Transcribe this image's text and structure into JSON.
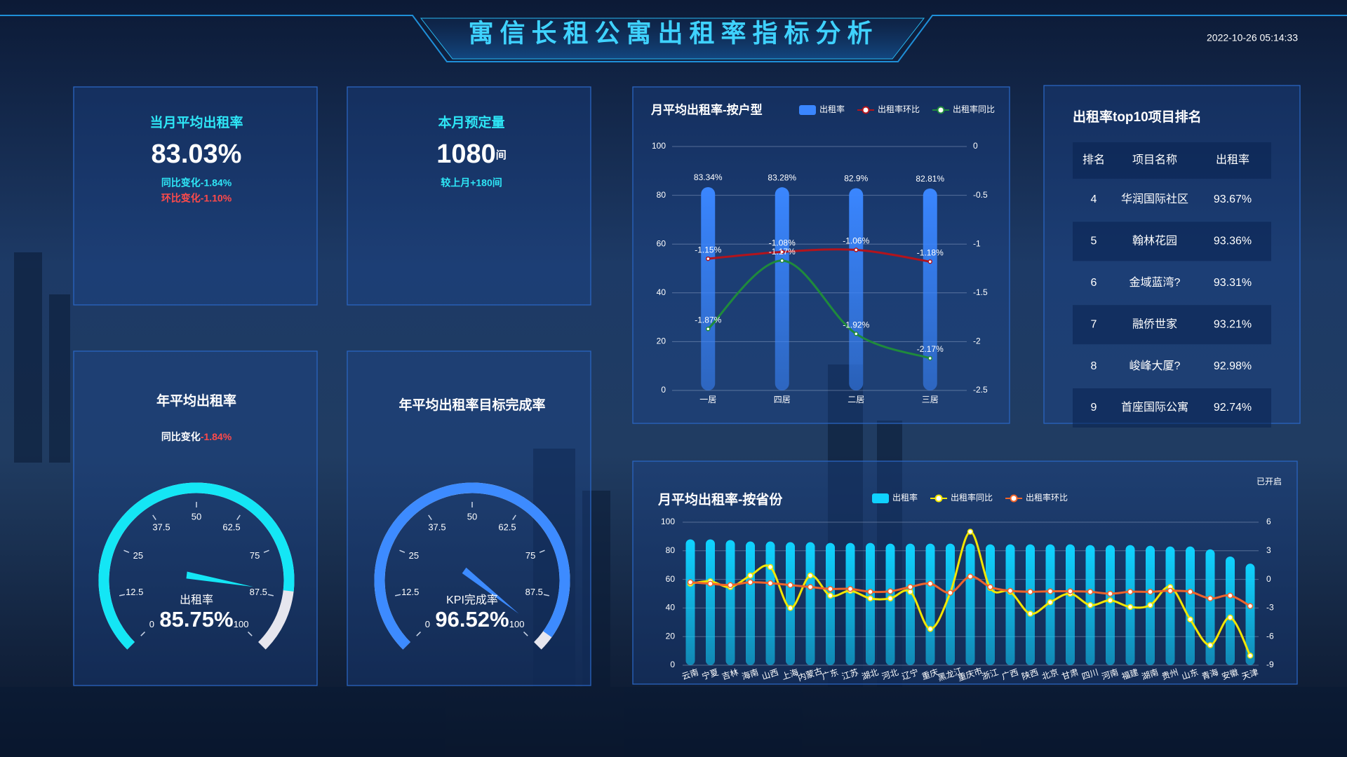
{
  "header": {
    "title": "寓信长租公寓出租率指标分析",
    "timestamp": "2022-10-26 05:14:33"
  },
  "cards": [
    {
      "title": "当月平均出租率",
      "value": "83.03%",
      "notes": [
        "同比变化-1.84%",
        "环比变化-1.10%"
      ],
      "note_colors": [
        "#2ee6f6",
        "#ff4a4a"
      ]
    },
    {
      "title": "本月预定量",
      "value": "1080",
      "unit": "间",
      "notes": [
        "较上月+180间"
      ],
      "note_colors": [
        "#2ee6f6"
      ]
    }
  ],
  "table": {
    "title": "出租率top10项目排名",
    "columns": [
      "排名",
      "项目名称",
      "出租率"
    ],
    "rows": [
      [
        4,
        "华润国际社区",
        "93.67%"
      ],
      [
        5,
        "翰林花园",
        "93.36%"
      ],
      [
        6,
        "金域蓝湾?",
        "93.31%"
      ],
      [
        7,
        "融侨世家",
        "93.21%"
      ],
      [
        8,
        "峻峰大厦?",
        "92.98%"
      ],
      [
        9,
        "首座国际公寓",
        "92.74%"
      ]
    ]
  },
  "chart_data": [
    {
      "type": "gauge",
      "title": "年平均出租率",
      "sub_label": "同比变化",
      "sub_value": "-1.84%",
      "name": "出租率",
      "value": 85.75,
      "value_label": "85.75%",
      "range": [
        0,
        100
      ],
      "ticks": [
        0,
        12.5,
        25,
        37.5,
        50,
        62.5,
        75,
        87.5,
        100
      ],
      "color": "#14e6f5"
    },
    {
      "type": "gauge",
      "title": "年平均出租率目标完成率",
      "name": "KPI完成率",
      "value": 96.52,
      "value_label": "96.52%",
      "range": [
        0,
        100
      ],
      "ticks": [
        0,
        12.5,
        25,
        37.5,
        50,
        62.5,
        75,
        87.5,
        100
      ],
      "color": "#3d8bff"
    },
    {
      "type": "bar-line",
      "title": "月平均出租率-按户型",
      "categories": [
        "一居",
        "四居",
        "二居",
        "三居"
      ],
      "series": [
        {
          "name": "出租率",
          "type": "bar",
          "color": "#3a86ff",
          "values": [
            83.34,
            83.28,
            82.9,
            82.81
          ],
          "value_labels": [
            "83.34%",
            "83.28%",
            "82.9%",
            "82.81%"
          ]
        },
        {
          "name": "出租率环比",
          "type": "line",
          "axis": "y2",
          "color": "#b3141c",
          "values": [
            -1.15,
            -1.08,
            -1.06,
            -1.18
          ],
          "value_labels": [
            "-1.15%",
            "-1.08%",
            "-1.06%",
            "-1.18%"
          ]
        },
        {
          "name": "出租率同比",
          "type": "line",
          "axis": "y2",
          "color": "#1f8a3c",
          "values": [
            -1.87,
            -1.17,
            -1.92,
            -2.17
          ],
          "value_labels": [
            "-1.87%",
            "-1.17%",
            "-1.92%",
            "-2.17%"
          ]
        }
      ],
      "ylim": [
        0,
        100
      ],
      "yticks": [
        0,
        20,
        40,
        60,
        80,
        100
      ],
      "y2lim": [
        -2.5,
        0
      ],
      "y2ticks": [
        0,
        -0.5,
        -1,
        -1.5,
        -2,
        -2.5
      ],
      "grid": true
    },
    {
      "type": "bar-line",
      "title": "月平均出租率-按省份",
      "toggle_label": "已开启",
      "categories": [
        "云南",
        "宁夏",
        "吉林",
        "海南",
        "山西",
        "上海",
        "内蒙古",
        "广东",
        "江苏",
        "湖北",
        "河北",
        "辽宁",
        "重庆",
        "黑龙江",
        "重庆市",
        "浙江",
        "广西",
        "陕西",
        "北京",
        "甘肃",
        "四川",
        "河南",
        "福建",
        "湖南",
        "贵州",
        "山东",
        "青海",
        "安徽",
        "天津"
      ],
      "series": [
        {
          "name": "出租率",
          "type": "bar",
          "color": "#0fd2ff",
          "values": [
            88,
            88,
            87.5,
            86.5,
            86.5,
            86,
            86,
            85.5,
            85.5,
            85.5,
            85,
            85,
            85,
            85,
            85,
            84.5,
            84.5,
            84.5,
            84.5,
            84.5,
            84,
            84,
            84,
            83.5,
            83,
            83,
            81,
            76,
            71
          ]
        },
        {
          "name": "出租率同比",
          "type": "line",
          "axis": "y2",
          "color": "#f2e600",
          "values": [
            -0.45,
            -0.2,
            -0.8,
            0.4,
            1.3,
            -3,
            0.4,
            -1.7,
            -1.2,
            -2,
            -2,
            -1.3,
            -5.2,
            -1.4,
            5,
            -0.9,
            -1.3,
            -3.6,
            -2.4,
            -1.5,
            -2.7,
            -2.2,
            -2.9,
            -2.7,
            -0.8,
            -4.2,
            -6.9,
            -4,
            -8
          ]
        },
        {
          "name": "出租率环比",
          "type": "line",
          "axis": "y2",
          "color": "#f0642a",
          "values": [
            -0.3,
            -0.45,
            -0.6,
            -0.3,
            -0.4,
            -0.6,
            -0.8,
            -1,
            -1,
            -1.3,
            -1.25,
            -0.8,
            -0.45,
            -1.4,
            0.3,
            -0.8,
            -1.2,
            -1.3,
            -1.25,
            -1.25,
            -1.3,
            -1.5,
            -1.3,
            -1.3,
            -1.2,
            -1.3,
            -2,
            -1.7,
            -2.8
          ]
        }
      ],
      "ylim": [
        0,
        100
      ],
      "yticks": [
        0,
        20,
        40,
        60,
        80,
        100
      ],
      "y2lim": [
        -9,
        6
      ],
      "y2ticks": [
        6,
        3,
        0,
        -3,
        -6,
        -9
      ],
      "grid": true
    }
  ]
}
